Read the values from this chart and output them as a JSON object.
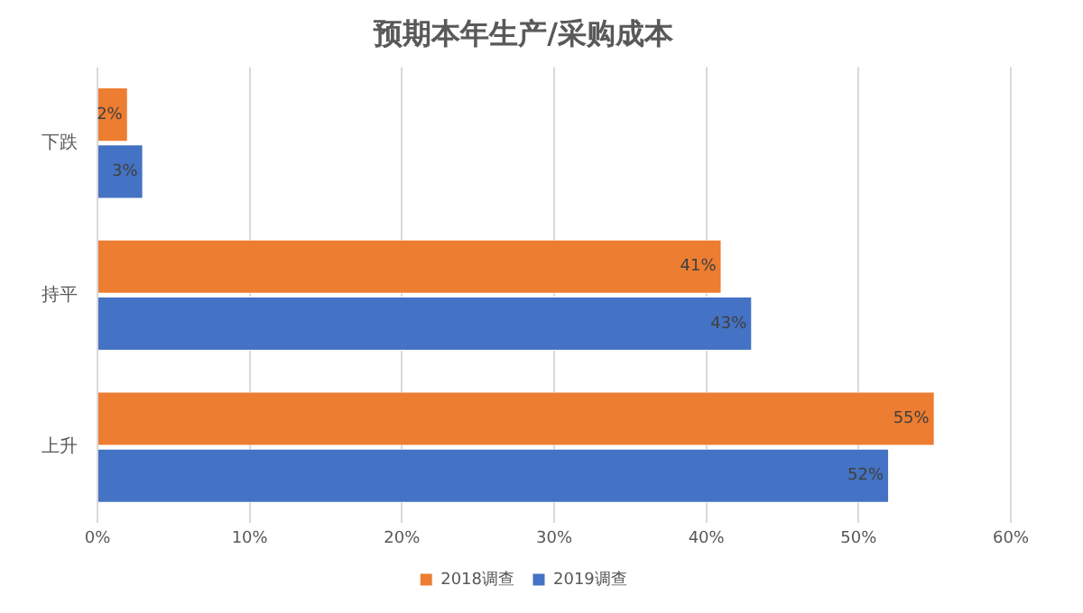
{
  "chart_data": {
    "type": "bar",
    "orientation": "horizontal",
    "title": "预期本年生产/采购成本",
    "categories": [
      "下跌",
      "持平",
      "上升"
    ],
    "series": [
      {
        "name": "2018调查",
        "color": "#ed7d31",
        "values": [
          2,
          41,
          55
        ],
        "value_labels": [
          "2%",
          "41%",
          "55%"
        ]
      },
      {
        "name": "2019调查",
        "color": "#4472c4",
        "values": [
          3,
          43,
          52
        ],
        "value_labels": [
          "3%",
          "43%",
          "52%"
        ]
      }
    ],
    "xlim": [
      0,
      60
    ],
    "xticks": [
      {
        "value": 0,
        "label": "0%"
      },
      {
        "value": 10,
        "label": "10%"
      },
      {
        "value": 20,
        "label": "20%"
      },
      {
        "value": 30,
        "label": "30%"
      },
      {
        "value": 40,
        "label": "40%"
      },
      {
        "value": 50,
        "label": "50%"
      },
      {
        "value": 60,
        "label": "60%"
      }
    ],
    "grid": "x",
    "legend": "bottom"
  }
}
